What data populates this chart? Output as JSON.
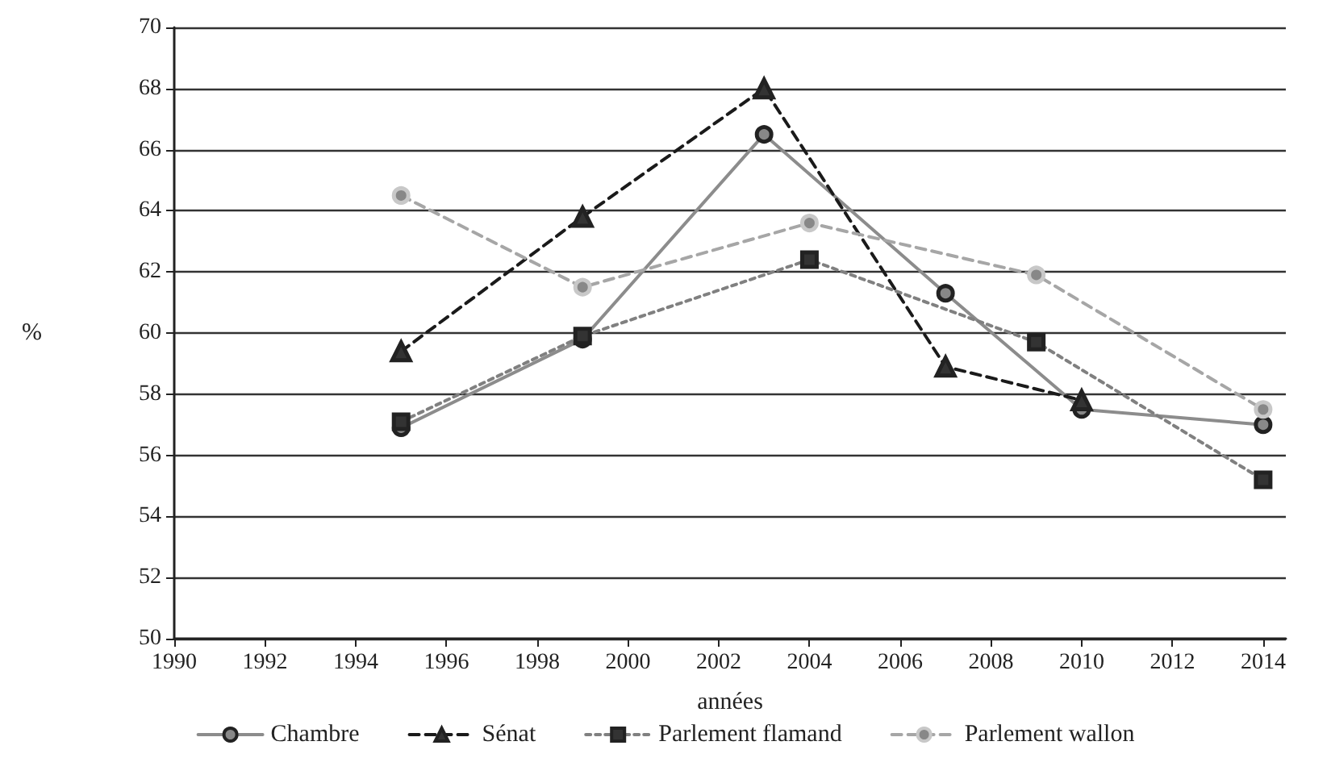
{
  "chart_data": {
    "type": "line",
    "xlabel": "années",
    "ylabel": "%",
    "xlim": [
      1990,
      2014.5
    ],
    "xticks": [
      1990,
      1992,
      1994,
      1996,
      1998,
      2000,
      2002,
      2004,
      2006,
      2008,
      2010,
      2012,
      2014
    ],
    "ylim": [
      50,
      70
    ],
    "yticks": [
      50,
      52,
      54,
      56,
      58,
      60,
      62,
      64,
      66,
      68,
      70
    ],
    "grid": "y",
    "legend": "bottom",
    "series": [
      {
        "name": "Chambre",
        "color": "#8c8c8c",
        "marker": "circle",
        "line_style": "solid",
        "x": [
          1995,
          1999,
          2003,
          2007,
          2010,
          2014
        ],
        "values": [
          56.9,
          59.8,
          66.5,
          61.3,
          57.5,
          57.0
        ]
      },
      {
        "name": "Sénat",
        "color": "#1a1a1a",
        "marker": "triangle",
        "line_style": "dashed",
        "x": [
          1995,
          1999,
          2003,
          2007,
          2010
        ],
        "values": [
          59.4,
          63.8,
          68.0,
          58.9,
          57.8
        ]
      },
      {
        "name": "Parlement flamand",
        "color": "#808080",
        "marker": "square",
        "line_style": "dotted",
        "x": [
          1995,
          1999,
          2004,
          2009,
          2014
        ],
        "values": [
          57.1,
          59.9,
          62.4,
          59.7,
          55.2
        ]
      },
      {
        "name": "Parlement wallon",
        "color": "#a6a6a6",
        "marker": "circle",
        "line_style": "dashed",
        "x": [
          1995,
          1999,
          2004,
          2009,
          2014
        ],
        "values": [
          64.5,
          61.5,
          63.6,
          61.9,
          57.5
        ]
      }
    ]
  }
}
